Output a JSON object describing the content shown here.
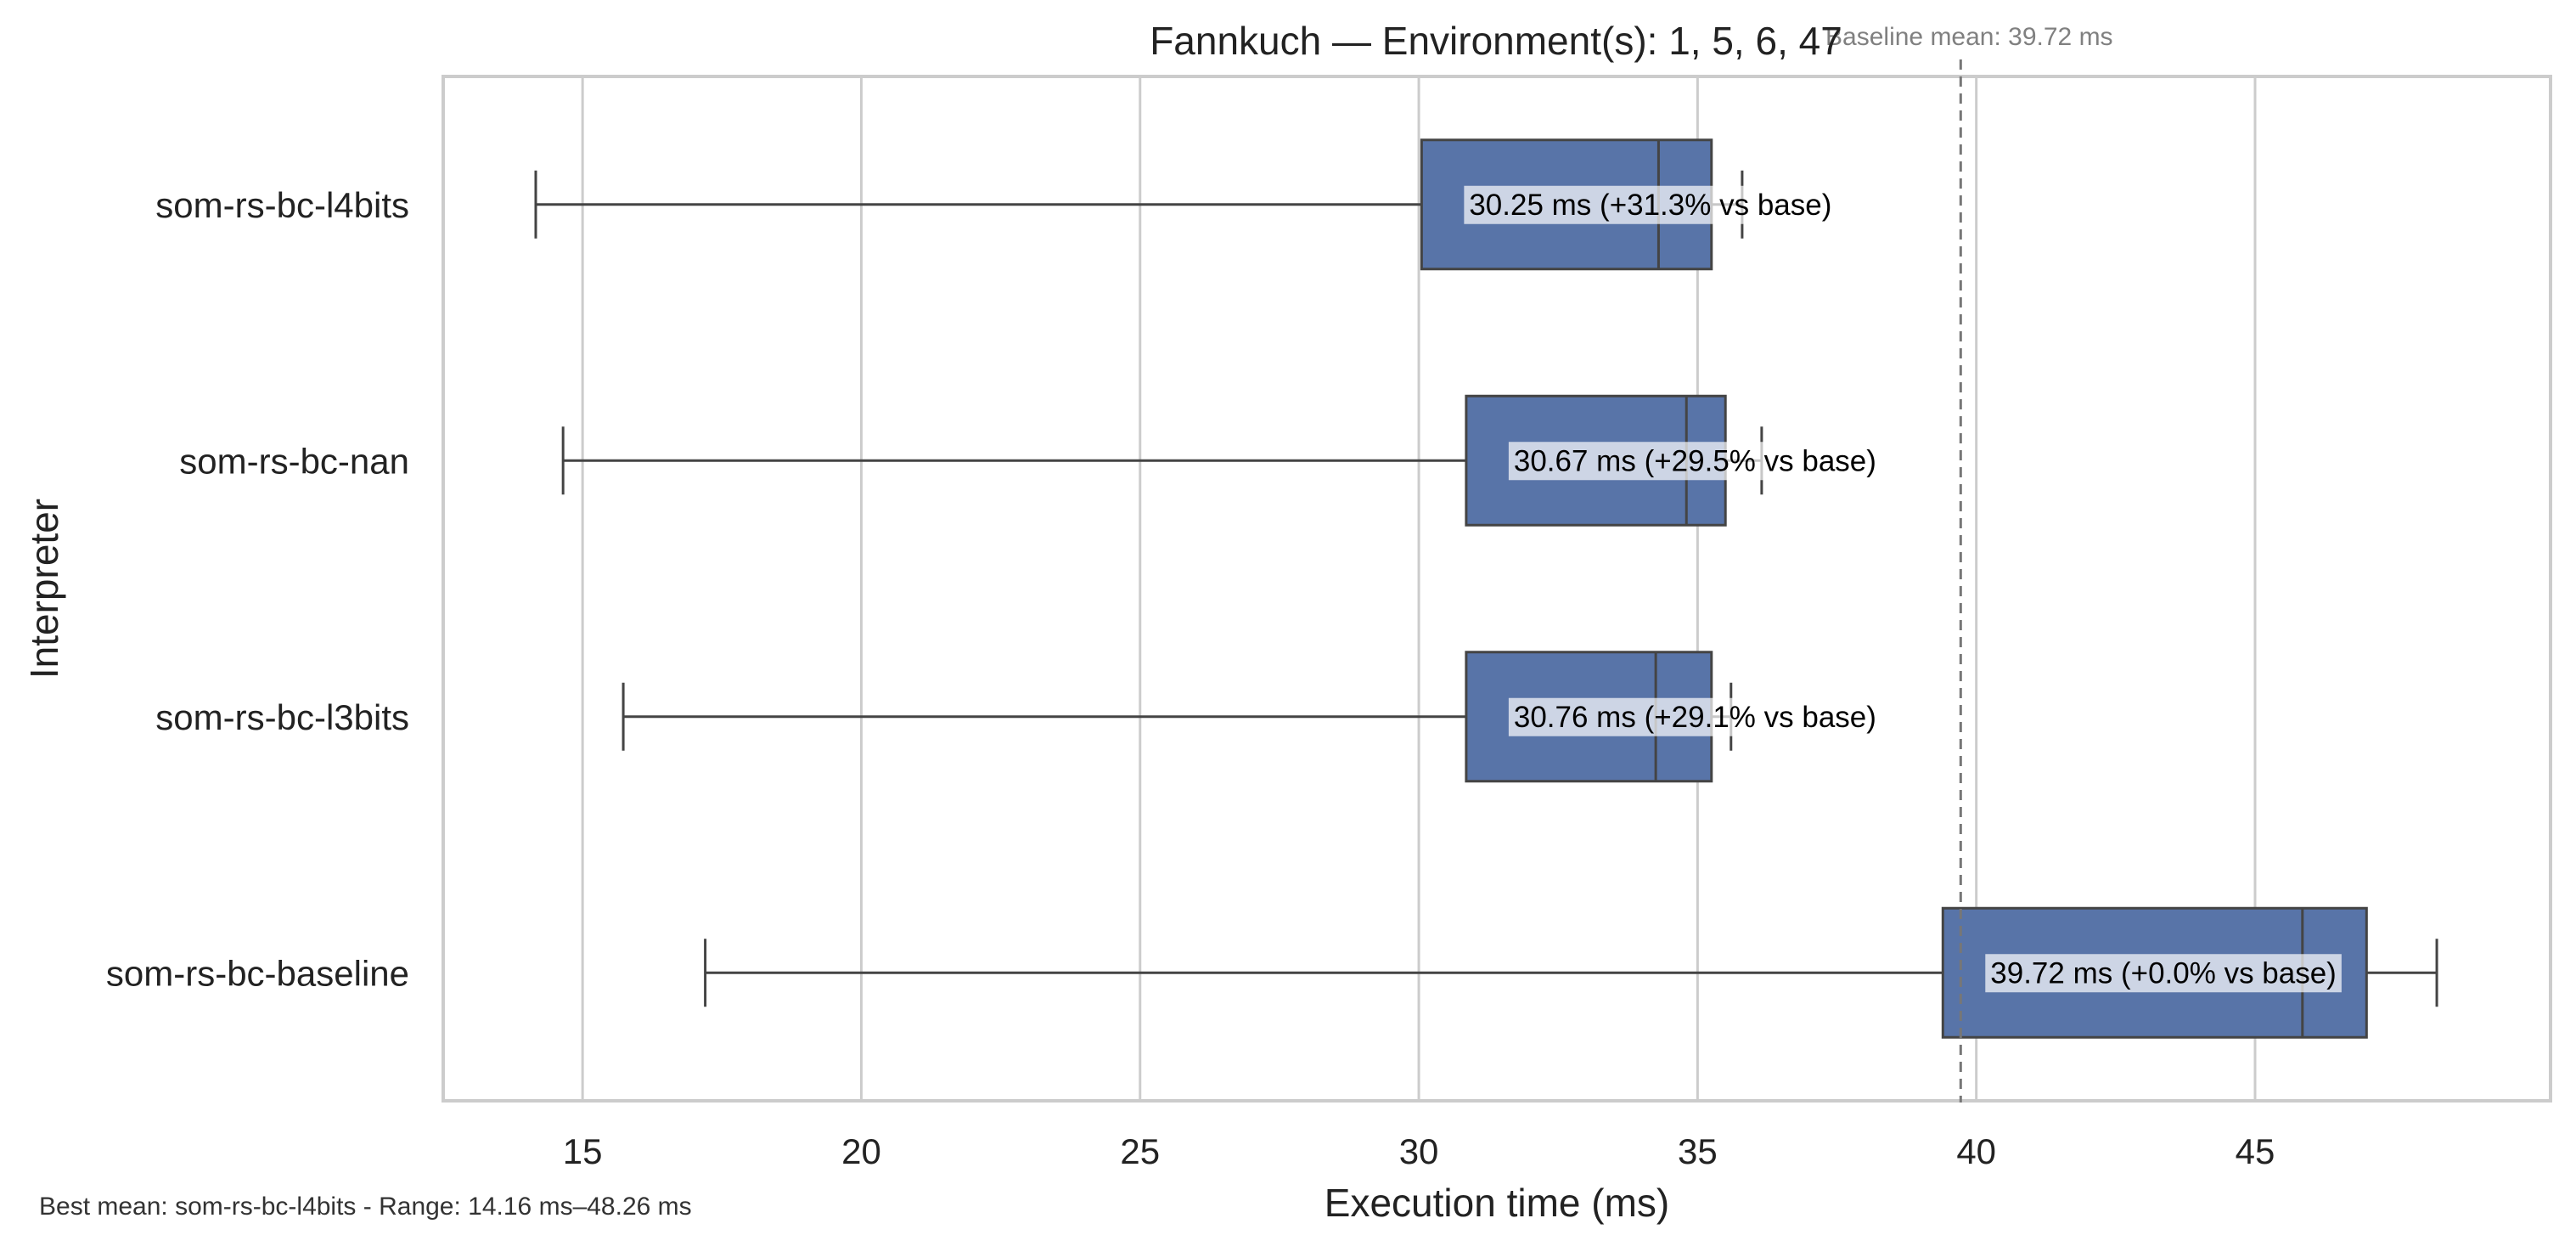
{
  "chart_data": {
    "type": "box",
    "orientation": "horizontal",
    "title": "Fannkuch — Environment(s): 1, 5, 6, 47",
    "xlabel": "Execution time (ms)",
    "ylabel": "Interpreter",
    "xlim": [
      12.5,
      50.3
    ],
    "xticks": [
      15,
      20,
      25,
      30,
      35,
      40,
      45
    ],
    "grid": "vertical",
    "box_color": "#5874a8",
    "baseline": {
      "value": 39.72,
      "label": "Baseline mean: 39.72 ms"
    },
    "series": [
      {
        "name": "som-rs-bc-l4bits",
        "whisker_low": 14.16,
        "q1": 30.05,
        "median": 34.3,
        "q3": 35.25,
        "whisker_high": 35.8,
        "mean": 30.25,
        "annotation": "30.25 ms  (+31.3% vs base)"
      },
      {
        "name": "som-rs-bc-nan",
        "whisker_low": 14.65,
        "q1": 30.85,
        "median": 34.8,
        "q3": 35.5,
        "whisker_high": 36.15,
        "mean": 30.67,
        "annotation": "30.67 ms  (+29.5% vs base)"
      },
      {
        "name": "som-rs-bc-l3bits",
        "whisker_low": 15.73,
        "q1": 30.85,
        "median": 34.25,
        "q3": 35.25,
        "whisker_high": 35.6,
        "mean": 30.76,
        "annotation": "30.76 ms  (+29.1% vs base)"
      },
      {
        "name": "som-rs-bc-baseline",
        "whisker_low": 17.2,
        "q1": 39.4,
        "median": 45.85,
        "q3": 47.0,
        "whisker_high": 48.26,
        "mean": 39.72,
        "annotation": "39.72 ms  (+0.0% vs base)"
      }
    ]
  },
  "footer": {
    "note": "Best mean: som-rs-bc-l4bits - Range: 14.16 ms–48.26 ms"
  }
}
